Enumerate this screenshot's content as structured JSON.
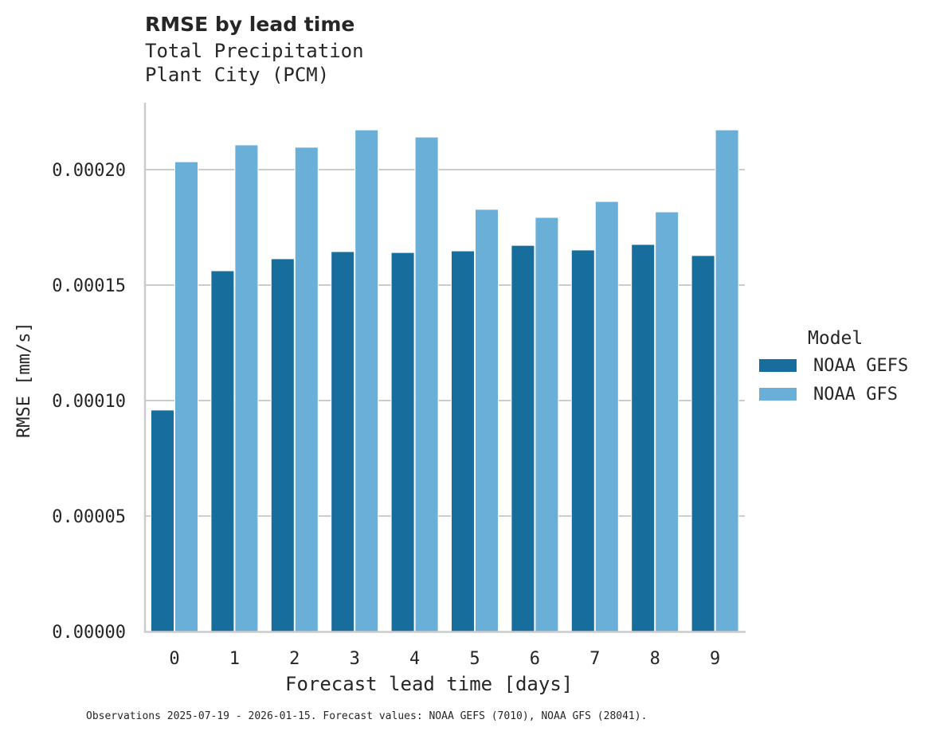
{
  "header": {
    "title": "RMSE by lead time",
    "subtitle_line1": "Total Precipitation",
    "subtitle_line2": "Plant City (PCM)"
  },
  "axes": {
    "ylabel": "RMSE [mm/s]",
    "xlabel": "Forecast lead time [days]",
    "yticks": [
      "0.00000",
      "0.00005",
      "0.00010",
      "0.00015",
      "0.00020"
    ],
    "xticks": [
      "0",
      "1",
      "2",
      "3",
      "4",
      "5",
      "6",
      "7",
      "8",
      "9"
    ]
  },
  "legend": {
    "title": "Model",
    "items": [
      {
        "label": "NOAA GEFS",
        "color": "#176d9c"
      },
      {
        "label": "NOAA GFS",
        "color": "#69afd7"
      }
    ]
  },
  "footnote": "Observations 2025-07-19 - 2026-01-15. Forecast values: NOAA GEFS (7010), NOAA GFS (28041).",
  "chart_data": {
    "type": "bar",
    "title": "RMSE by lead time",
    "subtitle": "Total Precipitation / Plant City (PCM)",
    "xlabel": "Forecast lead time [days]",
    "ylabel": "RMSE [mm/s]",
    "categories": [
      "0",
      "1",
      "2",
      "3",
      "4",
      "5",
      "6",
      "7",
      "8",
      "9"
    ],
    "series": [
      {
        "name": "NOAA GEFS",
        "color": "#176d9c",
        "values": [
          9.59e-05,
          0.0001562,
          0.0001614,
          0.0001645,
          0.0001641,
          0.0001648,
          0.0001672,
          0.0001652,
          0.0001676,
          0.0001628
        ]
      },
      {
        "name": "NOAA GFS",
        "color": "#69afd7",
        "values": [
          0.0002034,
          0.0002107,
          0.0002097,
          0.0002172,
          0.0002141,
          0.0001828,
          0.0001793,
          0.0001862,
          0.0001817,
          0.0002172
        ]
      }
    ],
    "ylim": [
      0,
      0.000229
    ],
    "yticks": [
      0,
      5e-05,
      0.0001,
      0.00015,
      0.0002
    ],
    "grid": "horizontal",
    "legend_position": "right",
    "legend_title": "Model"
  }
}
